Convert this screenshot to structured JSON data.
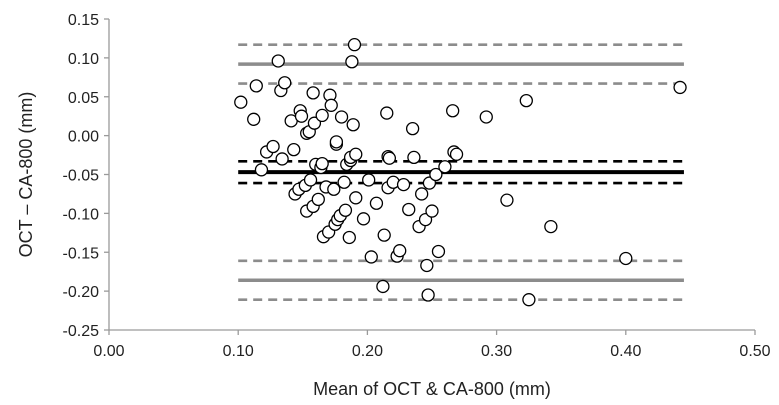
{
  "chart_data": {
    "type": "scatter",
    "title": "",
    "xlabel": "Mean of OCT & CA-800 (mm)",
    "ylabel": "OCT – CA-800 (mm)",
    "xlim": [
      0.0,
      0.5
    ],
    "ylim": [
      -0.25,
      0.15
    ],
    "x_ticks": [
      "0.00",
      "0.10",
      "0.20",
      "0.30",
      "0.40",
      "0.50"
    ],
    "y_ticks": [
      "0.15",
      "0.10",
      "0.05",
      "0.00",
      "-0.05",
      "-0.10",
      "-0.15",
      "-0.20",
      "-0.25"
    ],
    "x_tick_values": [
      0.0,
      0.1,
      0.2,
      0.3,
      0.4,
      0.5
    ],
    "y_tick_values": [
      0.15,
      0.1,
      0.05,
      0.0,
      -0.05,
      -0.1,
      -0.15,
      -0.2,
      -0.25
    ],
    "grid": false,
    "legend": "none",
    "reference_lines": [
      {
        "role": "mean difference",
        "y": -0.047,
        "style": "solid",
        "color": "#000000"
      },
      {
        "role": "mean difference 95% CI",
        "y": -0.033,
        "style": "dashed",
        "color": "#000000"
      },
      {
        "role": "mean difference 95% CI",
        "y": -0.061,
        "style": "dashed",
        "color": "#000000"
      },
      {
        "role": "upper limit of agreement",
        "y": 0.092,
        "style": "solid",
        "color": "#8c8c8c"
      },
      {
        "role": "upper limit 95% CI",
        "y": 0.117,
        "style": "dashed",
        "color": "#8c8c8c"
      },
      {
        "role": "upper limit 95% CI",
        "y": 0.067,
        "style": "dashed",
        "color": "#8c8c8c"
      },
      {
        "role": "lower limit of agreement",
        "y": -0.186,
        "style": "solid",
        "color": "#8c8c8c"
      },
      {
        "role": "lower limit 95% CI",
        "y": -0.161,
        "style": "dashed",
        "color": "#8c8c8c"
      },
      {
        "role": "lower limit 95% CI",
        "y": -0.211,
        "style": "dashed",
        "color": "#8c8c8c"
      }
    ],
    "x": [
      0.102,
      0.112,
      0.114,
      0.118,
      0.122,
      0.127,
      0.131,
      0.133,
      0.134,
      0.136,
      0.141,
      0.143,
      0.144,
      0.147,
      0.148,
      0.149,
      0.152,
      0.153,
      0.153,
      0.155,
      0.156,
      0.158,
      0.158,
      0.159,
      0.16,
      0.162,
      0.164,
      0.165,
      0.165,
      0.166,
      0.168,
      0.17,
      0.171,
      0.172,
      0.174,
      0.175,
      0.176,
      0.176,
      0.177,
      0.179,
      0.18,
      0.182,
      0.183,
      0.184,
      0.186,
      0.187,
      0.187,
      0.188,
      0.189,
      0.19,
      0.191,
      0.191,
      0.197,
      0.201,
      0.203,
      0.207,
      0.212,
      0.213,
      0.215,
      0.216,
      0.216,
      0.217,
      0.22,
      0.223,
      0.225,
      0.228,
      0.232,
      0.235,
      0.236,
      0.24,
      0.242,
      0.245,
      0.246,
      0.247,
      0.248,
      0.25,
      0.253,
      0.255,
      0.26,
      0.266,
      0.267,
      0.269,
      0.292,
      0.308,
      0.323,
      0.325,
      0.342,
      0.4,
      0.442
    ],
    "y": [
      0.043,
      0.021,
      0.064,
      -0.044,
      -0.021,
      -0.014,
      0.096,
      0.058,
      -0.03,
      0.068,
      0.019,
      -0.018,
      -0.075,
      -0.069,
      0.032,
      0.025,
      -0.064,
      0.003,
      -0.097,
      0.005,
      -0.057,
      -0.091,
      0.055,
      0.016,
      -0.037,
      -0.082,
      -0.041,
      -0.036,
      0.026,
      -0.13,
      -0.066,
      -0.124,
      0.052,
      0.039,
      -0.069,
      -0.114,
      -0.011,
      -0.008,
      -0.108,
      -0.103,
      0.024,
      -0.06,
      -0.096,
      -0.037,
      -0.131,
      -0.032,
      -0.028,
      0.095,
      0.014,
      0.117,
      -0.024,
      -0.08,
      -0.107,
      -0.057,
      -0.156,
      -0.087,
      -0.194,
      -0.128,
      0.029,
      -0.027,
      -0.067,
      -0.029,
      -0.06,
      -0.155,
      -0.148,
      -0.063,
      -0.095,
      0.009,
      -0.028,
      -0.117,
      -0.075,
      -0.108,
      -0.167,
      -0.205,
      -0.061,
      -0.097,
      -0.05,
      -0.149,
      -0.04,
      0.032,
      -0.021,
      -0.024,
      0.024,
      -0.083,
      0.045,
      -0.211,
      -0.117,
      -0.158,
      0.062
    ]
  }
}
